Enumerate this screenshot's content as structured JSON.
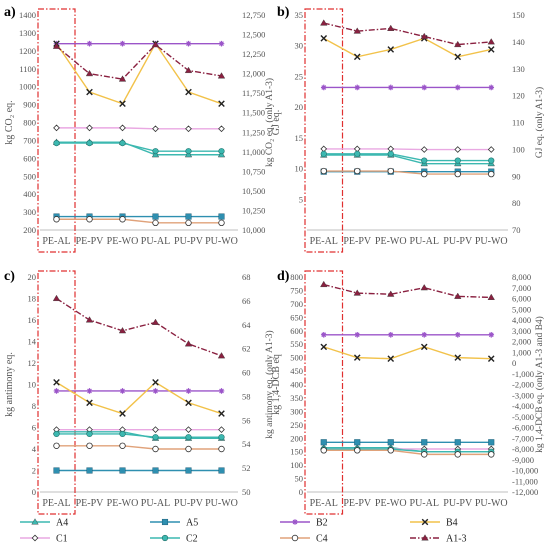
{
  "legend": {
    "placement": "bottom",
    "items": [
      {
        "key": "A4",
        "label": "A4",
        "color": "#3cb8b0",
        "marker": "triangle",
        "dash": "solid"
      },
      {
        "key": "A5",
        "label": "A5",
        "color": "#2e8fb0",
        "marker": "square",
        "dash": "solid"
      },
      {
        "key": "B2",
        "label": "B2",
        "color": "#9b55c9",
        "marker": "asterisk",
        "dash": "solid"
      },
      {
        "key": "B4",
        "label": "B4",
        "color": "#f2c24a",
        "marker": "x",
        "dash": "solid"
      },
      {
        "key": "C1",
        "label": "C1",
        "color": "#e9a8e2",
        "marker": "diamond-open",
        "dash": "solid"
      },
      {
        "key": "C2",
        "label": "C2",
        "color": "#3cb8b0",
        "marker": "circle-filled",
        "dash": "solid"
      },
      {
        "key": "C4",
        "label": "C4",
        "color": "#e0a27a",
        "marker": "circle-open",
        "dash": "solid"
      },
      {
        "key": "A13",
        "label": "A1-3",
        "color": "#8a2040",
        "marker": "triangle",
        "dash": "dashdot"
      }
    ]
  },
  "chart_data": [
    {
      "panel_label": "a)",
      "type": "line",
      "categories": [
        "PE-AL",
        "PE-PV",
        "PE-WO",
        "PU-AL",
        "PU-PV",
        "PU-WO"
      ],
      "ylabel_left": "kg CO₂ eq.",
      "ylabel_right": "kg CO₂ eq. (only A1-3)",
      "ylim_left": [
        200,
        1400
      ],
      "ylim_right": [
        10000,
        12750
      ],
      "yticks_left": [
        "200",
        "300",
        "400",
        "500",
        "600",
        "700",
        "800",
        "900",
        "1000",
        "1100",
        "1200",
        "1300",
        "1400"
      ],
      "yticks_right": [
        "10,000",
        "10,250",
        "10,500",
        "10,750",
        "11,000",
        "11,250",
        "11,500",
        "11,750",
        "12,000",
        "12,250",
        "12,500",
        "12,750"
      ],
      "grid": false,
      "highlight_category": "PE-AL",
      "series": [
        {
          "name": "A4",
          "axis": "left",
          "values": [
            690,
            690,
            690,
            620,
            620,
            620
          ]
        },
        {
          "name": "A5",
          "axis": "left",
          "values": [
            275,
            275,
            275,
            275,
            275,
            275
          ]
        },
        {
          "name": "B2",
          "axis": "left",
          "values": [
            1240,
            1240,
            1240,
            1240,
            1240,
            1240
          ]
        },
        {
          "name": "B4",
          "axis": "left",
          "values": [
            1240,
            970,
            905,
            1240,
            970,
            905
          ]
        },
        {
          "name": "C1",
          "axis": "left",
          "values": [
            770,
            770,
            770,
            765,
            765,
            765
          ]
        },
        {
          "name": "C2",
          "axis": "left",
          "values": [
            685,
            685,
            685,
            640,
            640,
            640
          ]
        },
        {
          "name": "C4",
          "axis": "left",
          "values": [
            260,
            260,
            260,
            240,
            240,
            240
          ]
        },
        {
          "name": "A1-3",
          "axis": "right",
          "values": [
            12350,
            12000,
            11930,
            12370,
            12040,
            11970
          ]
        }
      ]
    },
    {
      "panel_label": "b)",
      "type": "line",
      "categories": [
        "PE-AL",
        "PE-PV",
        "PE-WO",
        "PU-AL",
        "PU-PV",
        "PU-WO"
      ],
      "ylabel_left": "GJ eq.",
      "ylabel_right": "GJ eq. (only A1-3)",
      "ylim_left": [
        0,
        35
      ],
      "ylim_right": [
        70,
        150
      ],
      "yticks_left": [
        "5",
        "10",
        "15",
        "20",
        "25",
        "30",
        "35"
      ],
      "yticks_right": [
        "70",
        "80",
        "90",
        "100",
        "110",
        "120",
        "130",
        "140",
        "150"
      ],
      "grid": false,
      "highlight_category": "PE-AL",
      "series": [
        {
          "name": "A4",
          "axis": "left",
          "values": [
            12.2,
            12.2,
            12.2,
            10.8,
            10.8,
            10.8
          ]
        },
        {
          "name": "A5",
          "axis": "left",
          "values": [
            9.5,
            9.5,
            9.5,
            9.5,
            9.5,
            9.5
          ]
        },
        {
          "name": "B2",
          "axis": "left",
          "values": [
            23.2,
            23.2,
            23.2,
            23.2,
            23.2,
            23.2
          ]
        },
        {
          "name": "B4",
          "axis": "left",
          "values": [
            31.2,
            28.2,
            29.4,
            31.2,
            28.2,
            29.4
          ]
        },
        {
          "name": "C1",
          "axis": "left",
          "values": [
            13.2,
            13.2,
            13.2,
            13.1,
            13.1,
            13.1
          ]
        },
        {
          "name": "C2",
          "axis": "left",
          "values": [
            12.4,
            12.4,
            12.4,
            11.3,
            11.3,
            11.3
          ]
        },
        {
          "name": "C4",
          "axis": "left",
          "values": [
            9.6,
            9.6,
            9.6,
            9.1,
            9.1,
            9.1
          ]
        },
        {
          "name": "A1-3",
          "axis": "right",
          "values": [
            147,
            144,
            145,
            142,
            139,
            140
          ]
        }
      ]
    },
    {
      "panel_label": "c)",
      "type": "line",
      "categories": [
        "PE-AL",
        "PE-PV",
        "PE-WO",
        "PU-AL",
        "PU-PV",
        "PU-WO"
      ],
      "ylabel_left": "kg antimony eq.",
      "ylabel_right": "kg antimony eq. (only A1-3)",
      "ylim_left": [
        0,
        20
      ],
      "ylim_right": [
        50,
        68
      ],
      "yticks_left": [
        "0",
        "2",
        "4",
        "6",
        "8",
        "10",
        "12",
        "14",
        "16",
        "18",
        "20"
      ],
      "yticks_right": [
        "50",
        "52",
        "54",
        "56",
        "58",
        "60",
        "62",
        "64",
        "66",
        "68"
      ],
      "grid": false,
      "highlight_category": "PE-AL",
      "series": [
        {
          "name": "A4",
          "axis": "left",
          "values": [
            5.6,
            5.6,
            5.6,
            5.0,
            5.0,
            5.0
          ]
        },
        {
          "name": "A5",
          "axis": "left",
          "values": [
            2.0,
            2.0,
            2.0,
            2.0,
            2.0,
            2.0
          ]
        },
        {
          "name": "B2",
          "axis": "left",
          "values": [
            9.4,
            9.4,
            9.4,
            9.4,
            9.4,
            9.4
          ]
        },
        {
          "name": "B4",
          "axis": "left",
          "values": [
            10.2,
            8.3,
            7.3,
            10.2,
            8.3,
            7.3
          ]
        },
        {
          "name": "C1",
          "axis": "left",
          "values": [
            5.8,
            5.8,
            5.8,
            5.8,
            5.8,
            5.8
          ]
        },
        {
          "name": "C2",
          "axis": "left",
          "values": [
            5.4,
            5.4,
            5.4,
            5.1,
            5.1,
            5.1
          ]
        },
        {
          "name": "C4",
          "axis": "left",
          "values": [
            4.3,
            4.3,
            4.3,
            4.0,
            4.0,
            4.0
          ]
        },
        {
          "name": "A1-3",
          "axis": "right",
          "values": [
            66.2,
            64.4,
            63.5,
            64.2,
            62.4,
            61.4
          ]
        }
      ]
    },
    {
      "panel_label": "d)",
      "type": "line",
      "categories": [
        "PE-AL",
        "PE-PV",
        "PE-WO",
        "PU-AL",
        "PU-PV",
        "PU-WO"
      ],
      "ylabel_left": "kg 1,4-DCB eq",
      "ylabel_right": "kg 1,4-DCB eq. (only A1-3 and B4)",
      "ylim_left": [
        0,
        800
      ],
      "ylim_right": [
        -12000,
        8000
      ],
      "yticks_left": [
        "0",
        "50",
        "100",
        "150",
        "200",
        "250",
        "300",
        "350",
        "400",
        "450",
        "500",
        "550",
        "600",
        "650",
        "700",
        "750",
        "800"
      ],
      "yticks_right": [
        "-12,000",
        "-11,000",
        "-10,000",
        "-9,000",
        "-8,000",
        "-7,000",
        "-6,000",
        "-5,000",
        "-4,000",
        "-3,000",
        "-2,000",
        "-1,000",
        "0",
        "1,000",
        "2,000",
        "3,000",
        "4,000",
        "5,000",
        "6,000",
        "7,000",
        "8,000"
      ],
      "grid": false,
      "highlight_category": "PE-AL",
      "series": [
        {
          "name": "A4",
          "axis": "left",
          "values": [
            165,
            165,
            165,
            150,
            150,
            150
          ]
        },
        {
          "name": "A5",
          "axis": "left",
          "values": [
            185,
            185,
            185,
            185,
            185,
            185
          ]
        },
        {
          "name": "B2",
          "axis": "left",
          "values": [
            585,
            585,
            585,
            585,
            585,
            585
          ]
        },
        {
          "name": "B4",
          "axis": "right",
          "values": [
            1500,
            500,
            400,
            1500,
            500,
            400
          ]
        },
        {
          "name": "C1",
          "axis": "left",
          "values": [
            160,
            160,
            160,
            160,
            160,
            160
          ]
        },
        {
          "name": "C2",
          "axis": "left",
          "values": [
            160,
            160,
            160,
            150,
            150,
            150
          ]
        },
        {
          "name": "C4",
          "axis": "left",
          "values": [
            155,
            155,
            155,
            140,
            140,
            140
          ]
        },
        {
          "name": "A1-3",
          "axis": "right",
          "values": [
            7300,
            6500,
            6400,
            7000,
            6200,
            6100
          ]
        }
      ]
    }
  ]
}
